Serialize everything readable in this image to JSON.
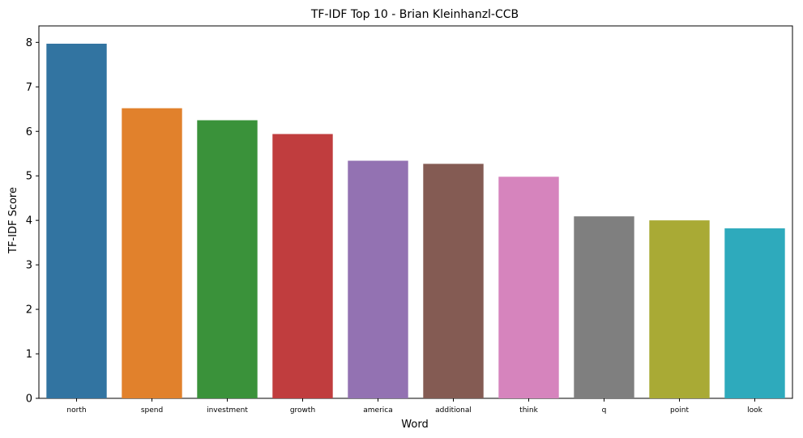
{
  "chart_data": {
    "type": "bar",
    "title": "TF-IDF Top 10 - Brian Kleinhanzl-CCB",
    "xlabel": "Word",
    "ylabel": "TF-IDF Score",
    "categories": [
      "north",
      "spend",
      "investment",
      "growth",
      "america",
      "additional",
      "think",
      "q",
      "point",
      "look"
    ],
    "values": [
      7.97,
      6.52,
      6.25,
      5.94,
      5.34,
      5.27,
      4.98,
      4.09,
      4.0,
      3.82
    ],
    "colors": [
      "#3274a1",
      "#e1812c",
      "#3a923a",
      "#c03d3e",
      "#9372b2",
      "#845b53",
      "#d684bd",
      "#7f7f7f",
      "#a9aa35",
      "#2eaabc"
    ],
    "ylim": [
      0,
      8.37
    ],
    "yticks": [
      "0",
      "1",
      "2",
      "3",
      "4",
      "5",
      "6",
      "7",
      "8"
    ],
    "grid": false,
    "legend": "none"
  }
}
